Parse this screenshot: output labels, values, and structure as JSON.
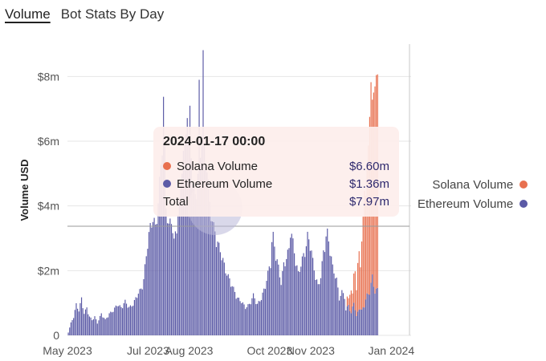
{
  "tabs": [
    {
      "label": "Volume",
      "active": true
    },
    {
      "label": "Bot Stats By Day",
      "active": false
    }
  ],
  "colors": {
    "solana": "#e8704f",
    "ethereum": "#5b5aa6",
    "grid": "#e6e6e6"
  },
  "legend": {
    "solana": "Solana Volume",
    "ethereum": "Ethereum Volume"
  },
  "tooltip": {
    "title": "2024-01-17 00:00",
    "solana_label": "Solana Volume",
    "solana_value": "$6.60m",
    "ethereum_label": "Ethereum Volume",
    "ethereum_value": "$1.36m",
    "total_label": "Total",
    "total_value": "$7.97m"
  },
  "chart_data": {
    "type": "bar",
    "stacked": true,
    "ylabel": "Volume USD",
    "yticks": [
      {
        "v": 0,
        "label": "0"
      },
      {
        "v": 2,
        "label": "$2m"
      },
      {
        "v": 4,
        "label": "$4m"
      },
      {
        "v": 6,
        "label": "$6m"
      },
      {
        "v": 8,
        "label": "$8m"
      }
    ],
    "ylim": [
      0,
      9
    ],
    "xlim_days": 260,
    "xticks": [
      {
        "day": 0,
        "label": "May 2023"
      },
      {
        "day": 61,
        "label": "Jul 2023"
      },
      {
        "day": 92,
        "label": "Aug 2023"
      },
      {
        "day": 153,
        "label": "Oct 2023"
      },
      {
        "day": 184,
        "label": "Nov 2023"
      },
      {
        "day": 245,
        "label": "Jan 2024"
      }
    ],
    "grid": true,
    "legend_position": "right",
    "series": [
      {
        "name": "Ethereum Volume",
        "anchors": [
          [
            0,
            0.1
          ],
          [
            2,
            0.4
          ],
          [
            4,
            0.6
          ],
          [
            6,
            1.0
          ],
          [
            8,
            0.8
          ],
          [
            10,
            1.2
          ],
          [
            12,
            0.7
          ],
          [
            14,
            0.9
          ],
          [
            16,
            0.6
          ],
          [
            18,
            0.5
          ],
          [
            20,
            0.6
          ],
          [
            22,
            0.4
          ],
          [
            25,
            0.7
          ],
          [
            28,
            0.5
          ],
          [
            31,
            0.7
          ],
          [
            34,
            0.8
          ],
          [
            37,
            1.0
          ],
          [
            40,
            0.9
          ],
          [
            43,
            1.1
          ],
          [
            46,
            0.9
          ],
          [
            49,
            1.0
          ],
          [
            52,
            1.3
          ],
          [
            55,
            1.5
          ],
          [
            57,
            1.8
          ],
          [
            58,
            2.2
          ],
          [
            59,
            2.6
          ],
          [
            60,
            3.0
          ],
          [
            62,
            3.5
          ],
          [
            64,
            3.8
          ],
          [
            66,
            3.5
          ],
          [
            68,
            4.3
          ],
          [
            70,
            5.5
          ],
          [
            71,
            6.4
          ],
          [
            72,
            7.6
          ],
          [
            73,
            6.0
          ],
          [
            74,
            4.2
          ],
          [
            76,
            3.5
          ],
          [
            78,
            3.8
          ],
          [
            80,
            3.0
          ],
          [
            82,
            3.6
          ],
          [
            84,
            4.2
          ],
          [
            86,
            5.7
          ],
          [
            88,
            6.0
          ],
          [
            90,
            7.4
          ],
          [
            91,
            6.0
          ],
          [
            92,
            7.2
          ],
          [
            94,
            5.0
          ],
          [
            96,
            4.5
          ],
          [
            98,
            5.2
          ],
          [
            99,
            7.9
          ],
          [
            100,
            5.8
          ],
          [
            101,
            6.6
          ],
          [
            102,
            9.0
          ],
          [
            103,
            6.0
          ],
          [
            105,
            5.5
          ],
          [
            107,
            4.2
          ],
          [
            110,
            3.5
          ],
          [
            113,
            3.0
          ],
          [
            116,
            2.6
          ],
          [
            119,
            2.1
          ],
          [
            122,
            1.8
          ],
          [
            125,
            1.5
          ],
          [
            128,
            1.2
          ],
          [
            131,
            1.1
          ],
          [
            134,
            0.9
          ],
          [
            137,
            1.0
          ],
          [
            140,
            1.3
          ],
          [
            143,
            1.0
          ],
          [
            146,
            1.2
          ],
          [
            149,
            1.6
          ],
          [
            151,
            2.0
          ],
          [
            153,
            2.4
          ],
          [
            154,
            3.0
          ],
          [
            155,
            3.2
          ],
          [
            157,
            2.6
          ],
          [
            159,
            2.2
          ],
          [
            161,
            1.7
          ],
          [
            163,
            2.3
          ],
          [
            165,
            2.5
          ],
          [
            167,
            2.8
          ],
          [
            168,
            3.5
          ],
          [
            170,
            3.0
          ],
          [
            172,
            2.4
          ],
          [
            174,
            2.0
          ],
          [
            176,
            2.3
          ],
          [
            178,
            2.6
          ],
          [
            180,
            2.9
          ],
          [
            181,
            3.2
          ],
          [
            183,
            3.0
          ],
          [
            185,
            2.4
          ],
          [
            187,
            1.9
          ],
          [
            189,
            1.6
          ],
          [
            191,
            1.9
          ],
          [
            193,
            2.7
          ],
          [
            195,
            3.2
          ],
          [
            196,
            3.3
          ],
          [
            198,
            2.8
          ],
          [
            200,
            2.2
          ],
          [
            203,
            1.8
          ],
          [
            205,
            1.2
          ],
          [
            207,
            1.4
          ],
          [
            209,
            1.3
          ],
          [
            210,
            0.8
          ],
          [
            212,
            1.0
          ],
          [
            214,
            0.7
          ],
          [
            216,
            1.1
          ],
          [
            218,
            0.6
          ],
          [
            220,
            0.9
          ],
          [
            222,
            0.8
          ],
          [
            224,
            1.0
          ],
          [
            226,
            1.3
          ],
          [
            228,
            1.4
          ],
          [
            230,
            1.9
          ],
          [
            232,
            1.4
          ],
          [
            234,
            1.5
          ]
        ]
      },
      {
        "name": "Solana Volume",
        "anchors": [
          [
            210,
            0
          ],
          [
            211,
            0.3
          ],
          [
            212,
            0.2
          ],
          [
            213,
            0.5
          ],
          [
            214,
            0.7
          ],
          [
            215,
            0.4
          ],
          [
            216,
            0.9
          ],
          [
            217,
            1.2
          ],
          [
            218,
            0.8
          ],
          [
            219,
            1.5
          ],
          [
            220,
            1.8
          ],
          [
            221,
            1.3
          ],
          [
            222,
            2.1
          ],
          [
            223,
            2.8
          ],
          [
            224,
            3.6
          ],
          [
            225,
            3.2
          ],
          [
            226,
            4.0
          ],
          [
            227,
            4.6
          ],
          [
            228,
            5.5
          ],
          [
            229,
            6.2
          ],
          [
            230,
            5.4
          ],
          [
            231,
            6.0
          ],
          [
            232,
            6.4
          ],
          [
            233,
            6.6
          ],
          [
            234,
            6.6
          ]
        ]
      }
    ]
  }
}
